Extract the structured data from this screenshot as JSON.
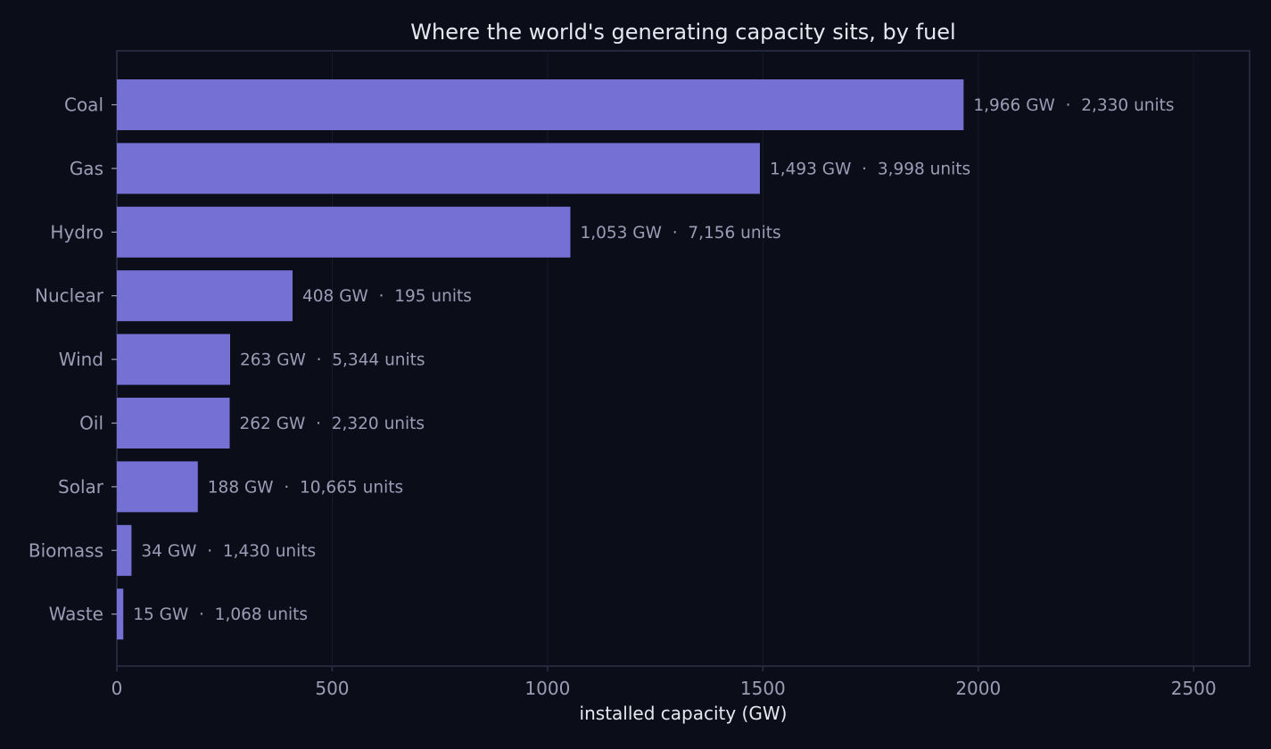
{
  "chart_data": {
    "type": "bar",
    "orientation": "horizontal",
    "title": "Where the world's generating capacity sits, by fuel",
    "xlabel": "installed capacity (GW)",
    "ylabel": "",
    "xlim": [
      0,
      2630
    ],
    "xticks": [
      0,
      500,
      1000,
      1500,
      2000,
      2500
    ],
    "grid": true,
    "categories": [
      "Coal",
      "Gas",
      "Hydro",
      "Nuclear",
      "Wind",
      "Oil",
      "Solar",
      "Biomass",
      "Waste"
    ],
    "values": [
      1966,
      1493,
      1053,
      408,
      263,
      262,
      188,
      34,
      15
    ],
    "data_labels": [
      "1,966 GW  ·  2,330 units",
      "1,493 GW  ·  3,998 units",
      "1,053 GW  ·  7,156 units",
      "408 GW  ·  195 units",
      "263 GW  ·  5,344 units",
      "262 GW  ·  2,320 units",
      "188 GW  ·  10,665 units",
      "34 GW  ·  1,430 units",
      "15 GW  ·  1,068 units"
    ]
  },
  "colors": {
    "background": "#0b0e19",
    "bar": "#7570d4",
    "axis": "#2c3048",
    "grid": "#161a29",
    "tick_label": "#9a9db5",
    "data_label": "#9a9db5",
    "title": "#e6e8f0",
    "axis_label": "#e6e8f0"
  }
}
